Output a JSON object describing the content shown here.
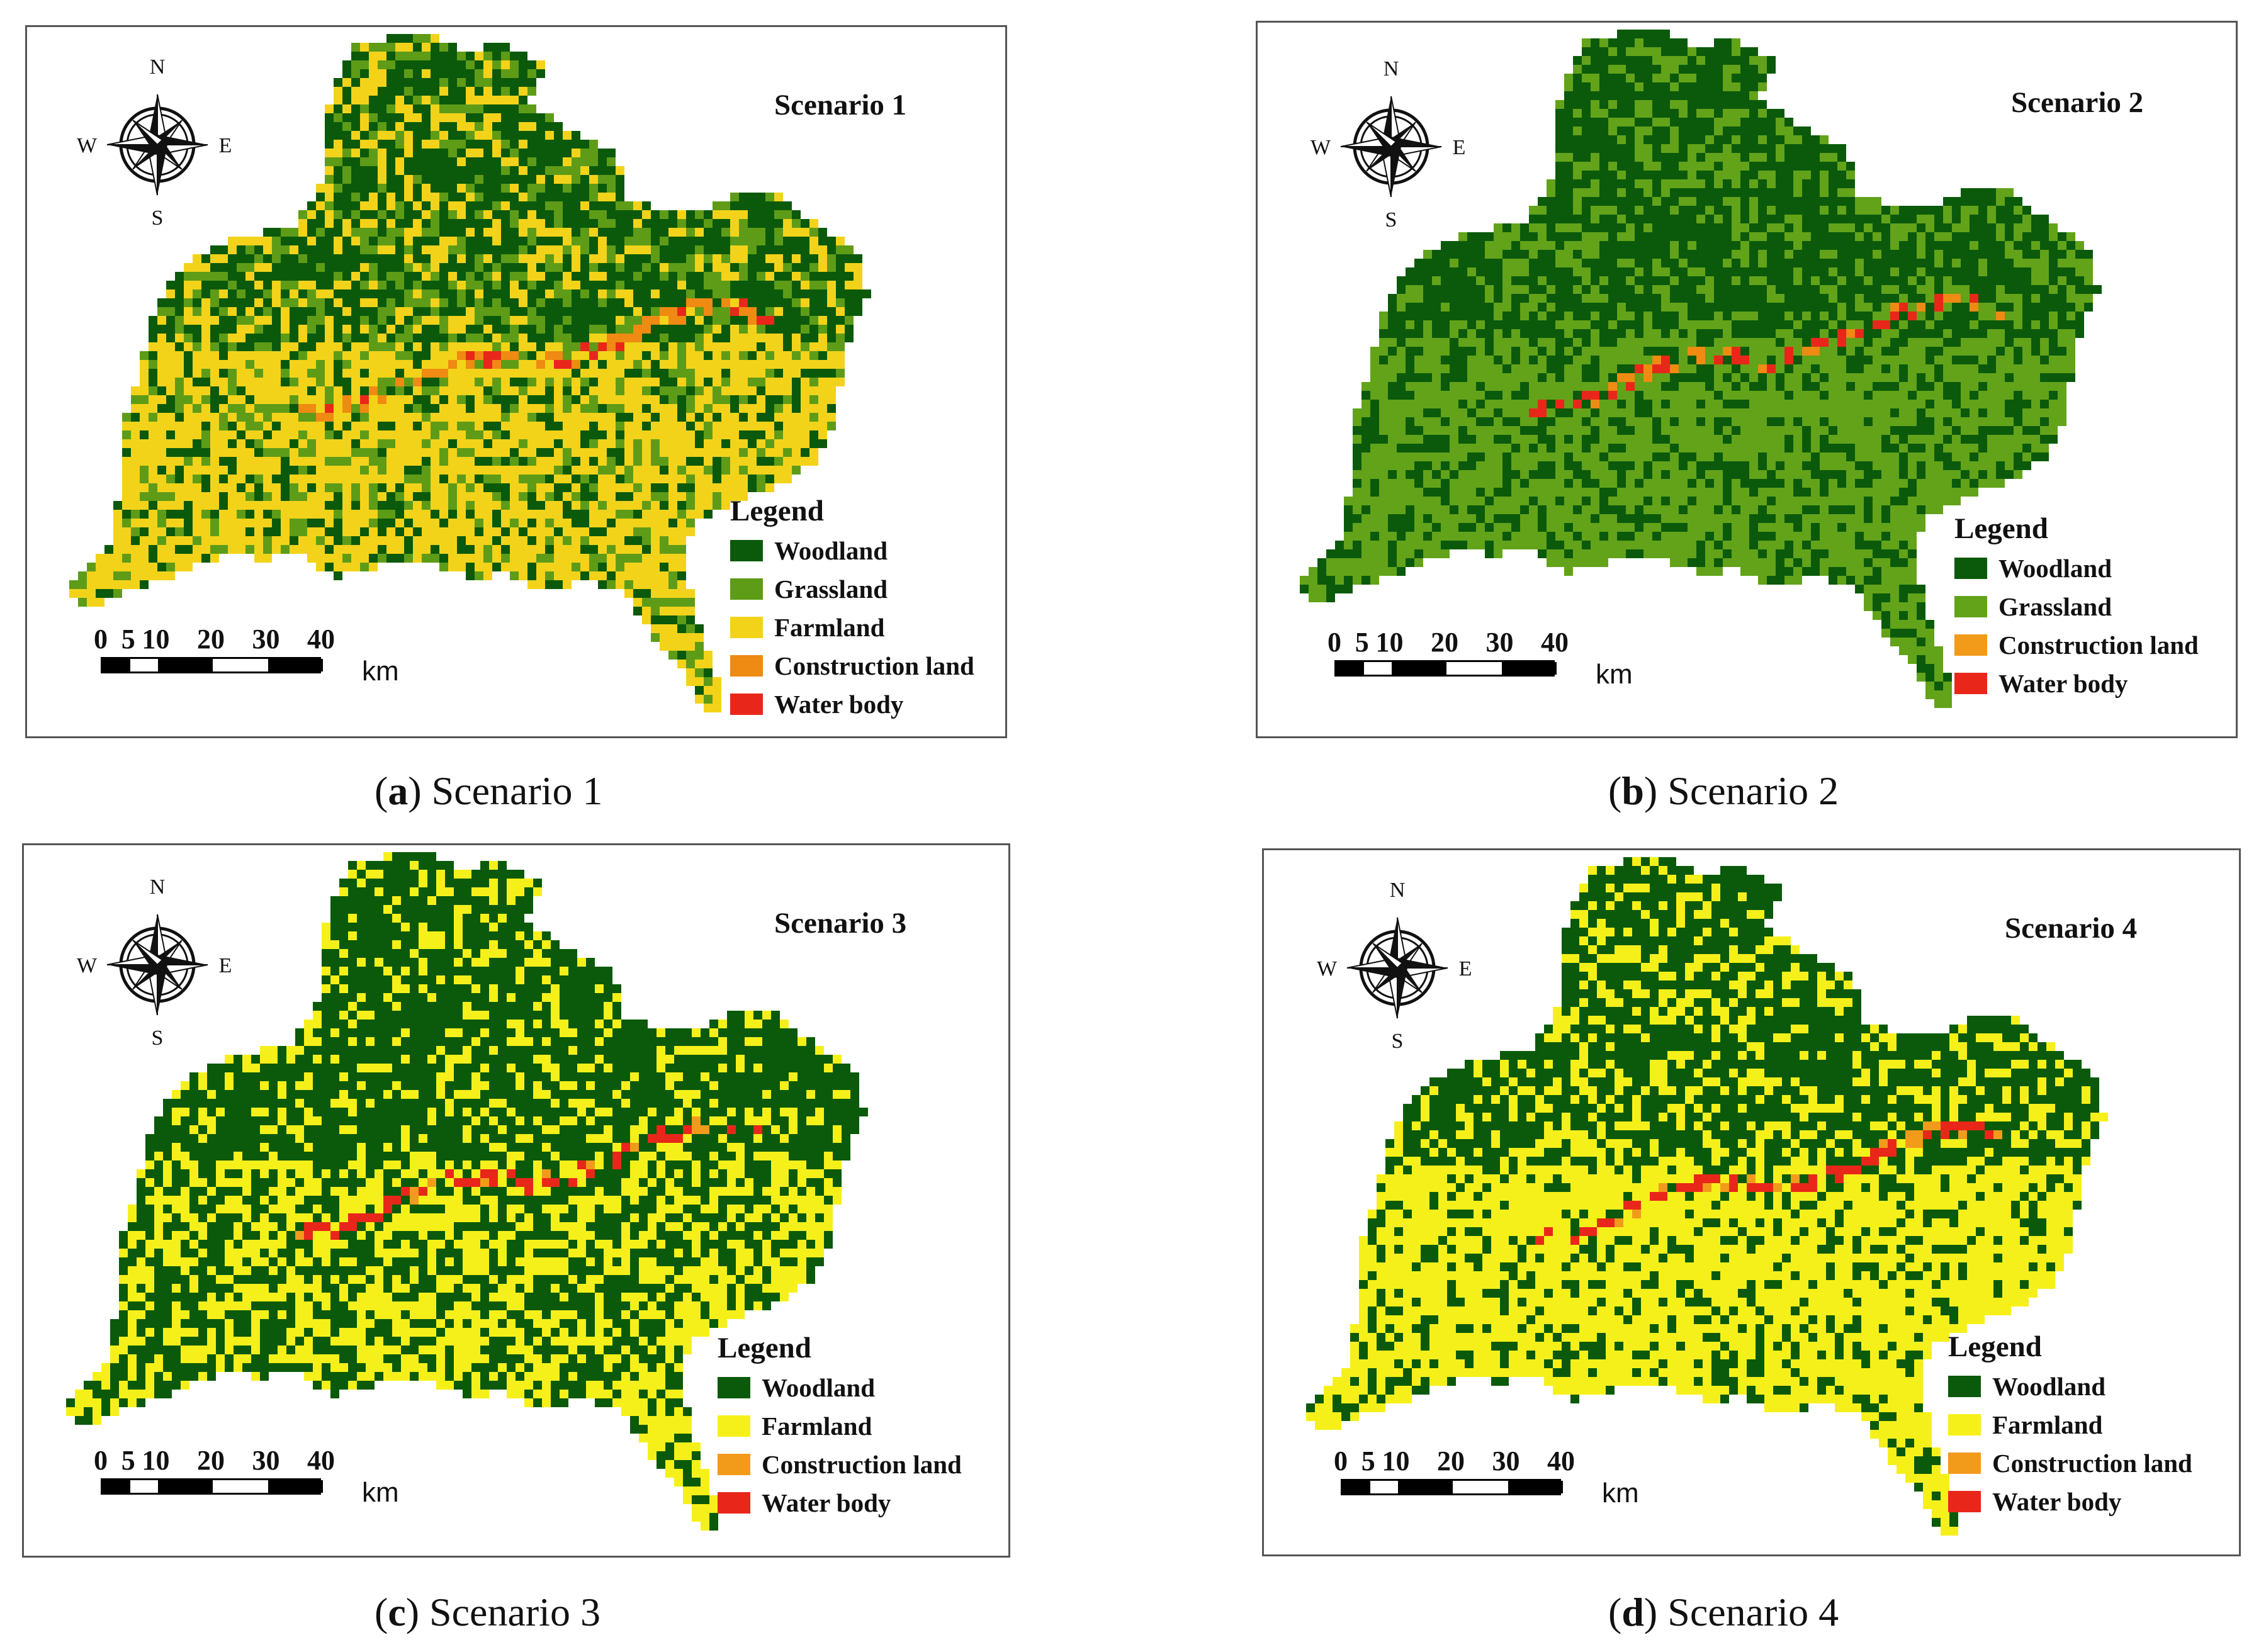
{
  "legend_title": "Legend",
  "compass_letters": {
    "n": "N",
    "s": "S",
    "e": "E",
    "w": "W"
  },
  "scale": {
    "ticks": [
      "0",
      "5",
      "10",
      "20",
      "30",
      "40"
    ],
    "unit": "km"
  },
  "colors": {
    "woodland": "#0b5a0b",
    "grassland": "#5a9a1a",
    "farmland": "#f2d21e",
    "construction": "#ef8a12",
    "water": "#e8271a"
  },
  "panels": [
    {
      "scenario_title": "Scenario 1",
      "caption_letter": "a",
      "caption_text": "Scenario 1",
      "legend": [
        {
          "label": "Woodland",
          "color": "#0b5a0b"
        },
        {
          "label": "Grassland",
          "color": "#5e9c18"
        },
        {
          "label": "Farmland",
          "color": "#f3d31a"
        },
        {
          "label": "Construction land",
          "color": "#ef8a12"
        },
        {
          "label": "Water body",
          "color": "#e8271a"
        }
      ]
    },
    {
      "scenario_title": "Scenario 2",
      "caption_letter": "b",
      "caption_text": "Scenario 2",
      "legend": [
        {
          "label": "Woodland",
          "color": "#0b5a0b"
        },
        {
          "label": "Grassland",
          "color": "#62a31a"
        },
        {
          "label": "Construction land",
          "color": "#f29b1a"
        },
        {
          "label": "Water body",
          "color": "#e8271a"
        }
      ]
    },
    {
      "scenario_title": "Scenario 3",
      "caption_letter": "c",
      "caption_text": "Scenario 3",
      "legend": [
        {
          "label": "Woodland",
          "color": "#0b5a0b"
        },
        {
          "label": "Farmland",
          "color": "#f6f01a"
        },
        {
          "label": "Construction land",
          "color": "#f29b1a"
        },
        {
          "label": "Water body",
          "color": "#e8271a"
        }
      ]
    },
    {
      "scenario_title": "Scenario 4",
      "caption_letter": "d",
      "caption_text": "Scenario 4",
      "legend": [
        {
          "label": "Woodland",
          "color": "#0b5a0b"
        },
        {
          "label": "Farmland",
          "color": "#f6f01a"
        },
        {
          "label": "Construction land",
          "color": "#f29b1a"
        },
        {
          "label": "Water body",
          "color": "#e8271a"
        }
      ]
    }
  ]
}
